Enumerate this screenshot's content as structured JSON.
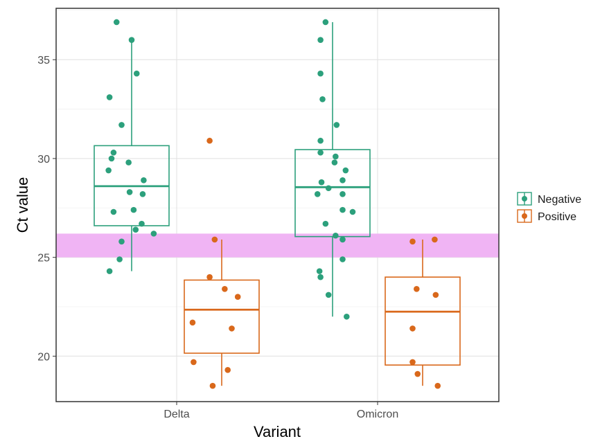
{
  "chart_data": {
    "type": "box",
    "xlabel": "Variant",
    "ylabel": "Ct value",
    "categories": [
      "Delta",
      "Omicron"
    ],
    "ylim": [
      17.7,
      37.6
    ],
    "yticks": [
      20,
      25,
      30,
      35
    ],
    "grid": true,
    "highlight_band": {
      "y0": 25.0,
      "y1": 26.2,
      "color": "#f0b4f4"
    },
    "legend": {
      "position": "right",
      "entries": [
        "Negative",
        "Positive"
      ]
    },
    "series": [
      {
        "name": "Negative",
        "color": "#2ca07c",
        "boxes": [
          {
            "category": "Delta",
            "min": 24.3,
            "q1": 26.6,
            "median": 28.6,
            "q3": 30.65,
            "max": 36.0
          },
          {
            "category": "Omicron",
            "min": 22.0,
            "q1": 26.05,
            "median": 28.55,
            "q3": 30.45,
            "max": 36.9
          }
        ],
        "points": [
          {
            "category": "Delta",
            "dx": -0.15,
            "y": 36.9
          },
          {
            "category": "Delta",
            "dx": 0.0,
            "y": 36.0
          },
          {
            "category": "Delta",
            "dx": 0.05,
            "y": 34.3
          },
          {
            "category": "Delta",
            "dx": -0.22,
            "y": 33.1
          },
          {
            "category": "Delta",
            "dx": -0.1,
            "y": 31.7
          },
          {
            "category": "Delta",
            "dx": -0.18,
            "y": 30.3
          },
          {
            "category": "Delta",
            "dx": -0.2,
            "y": 30.0
          },
          {
            "category": "Delta",
            "dx": -0.03,
            "y": 29.8
          },
          {
            "category": "Delta",
            "dx": -0.23,
            "y": 29.4
          },
          {
            "category": "Delta",
            "dx": 0.12,
            "y": 28.9
          },
          {
            "category": "Delta",
            "dx": -0.02,
            "y": 28.3
          },
          {
            "category": "Delta",
            "dx": 0.11,
            "y": 28.2
          },
          {
            "category": "Delta",
            "dx": 0.02,
            "y": 27.4
          },
          {
            "category": "Delta",
            "dx": -0.18,
            "y": 27.3
          },
          {
            "category": "Delta",
            "dx": 0.1,
            "y": 26.7
          },
          {
            "category": "Delta",
            "dx": 0.04,
            "y": 26.4
          },
          {
            "category": "Delta",
            "dx": 0.22,
            "y": 26.2
          },
          {
            "category": "Delta",
            "dx": -0.1,
            "y": 25.8
          },
          {
            "category": "Delta",
            "dx": -0.12,
            "y": 24.9
          },
          {
            "category": "Delta",
            "dx": -0.22,
            "y": 24.3
          },
          {
            "category": "Omicron",
            "dx": -0.07,
            "y": 36.9
          },
          {
            "category": "Omicron",
            "dx": -0.12,
            "y": 36.0
          },
          {
            "category": "Omicron",
            "dx": -0.12,
            "y": 34.3
          },
          {
            "category": "Omicron",
            "dx": -0.1,
            "y": 33.0
          },
          {
            "category": "Omicron",
            "dx": 0.04,
            "y": 31.7
          },
          {
            "category": "Omicron",
            "dx": -0.12,
            "y": 30.9
          },
          {
            "category": "Omicron",
            "dx": -0.12,
            "y": 30.3
          },
          {
            "category": "Omicron",
            "dx": 0.03,
            "y": 30.1
          },
          {
            "category": "Omicron",
            "dx": 0.02,
            "y": 29.8
          },
          {
            "category": "Omicron",
            "dx": 0.13,
            "y": 29.4
          },
          {
            "category": "Omicron",
            "dx": 0.1,
            "y": 28.9
          },
          {
            "category": "Omicron",
            "dx": -0.11,
            "y": 28.8
          },
          {
            "category": "Omicron",
            "dx": -0.04,
            "y": 28.5
          },
          {
            "category": "Omicron",
            "dx": -0.15,
            "y": 28.2
          },
          {
            "category": "Omicron",
            "dx": 0.1,
            "y": 28.2
          },
          {
            "category": "Omicron",
            "dx": 0.1,
            "y": 27.4
          },
          {
            "category": "Omicron",
            "dx": 0.2,
            "y": 27.3
          },
          {
            "category": "Omicron",
            "dx": -0.07,
            "y": 26.7
          },
          {
            "category": "Omicron",
            "dx": 0.03,
            "y": 26.1
          },
          {
            "category": "Omicron",
            "dx": 0.1,
            "y": 25.9
          },
          {
            "category": "Omicron",
            "dx": 0.1,
            "y": 24.9
          },
          {
            "category": "Omicron",
            "dx": -0.13,
            "y": 24.3
          },
          {
            "category": "Omicron",
            "dx": -0.12,
            "y": 24.0
          },
          {
            "category": "Omicron",
            "dx": -0.04,
            "y": 23.1
          },
          {
            "category": "Omicron",
            "dx": 0.14,
            "y": 22.0
          }
        ]
      },
      {
        "name": "Positive",
        "color": "#d9681b",
        "boxes": [
          {
            "category": "Delta",
            "min": 18.5,
            "q1": 20.15,
            "median": 22.35,
            "q3": 23.85,
            "max": 25.9
          },
          {
            "category": "Omicron",
            "min": 18.5,
            "q1": 19.55,
            "median": 22.25,
            "q3": 24.0,
            "max": 25.9
          }
        ],
        "points": [
          {
            "category": "Delta",
            "dx": -0.12,
            "y": 30.9
          },
          {
            "category": "Delta",
            "dx": -0.07,
            "y": 25.9
          },
          {
            "category": "Delta",
            "dx": -0.12,
            "y": 24.0
          },
          {
            "category": "Delta",
            "dx": 0.03,
            "y": 23.4
          },
          {
            "category": "Delta",
            "dx": 0.16,
            "y": 23.0
          },
          {
            "category": "Delta",
            "dx": -0.29,
            "y": 21.7
          },
          {
            "category": "Delta",
            "dx": 0.1,
            "y": 21.4
          },
          {
            "category": "Delta",
            "dx": -0.28,
            "y": 19.7
          },
          {
            "category": "Delta",
            "dx": 0.06,
            "y": 19.3
          },
          {
            "category": "Delta",
            "dx": -0.09,
            "y": 18.5
          },
          {
            "category": "Omicron",
            "dx": 0.12,
            "y": 25.9
          },
          {
            "category": "Omicron",
            "dx": -0.1,
            "y": 25.8
          },
          {
            "category": "Omicron",
            "dx": -0.06,
            "y": 23.4
          },
          {
            "category": "Omicron",
            "dx": 0.13,
            "y": 23.1
          },
          {
            "category": "Omicron",
            "dx": -0.1,
            "y": 21.4
          },
          {
            "category": "Omicron",
            "dx": -0.1,
            "y": 19.7
          },
          {
            "category": "Omicron",
            "dx": -0.05,
            "y": 19.1
          },
          {
            "category": "Omicron",
            "dx": 0.15,
            "y": 18.5
          }
        ]
      }
    ]
  }
}
